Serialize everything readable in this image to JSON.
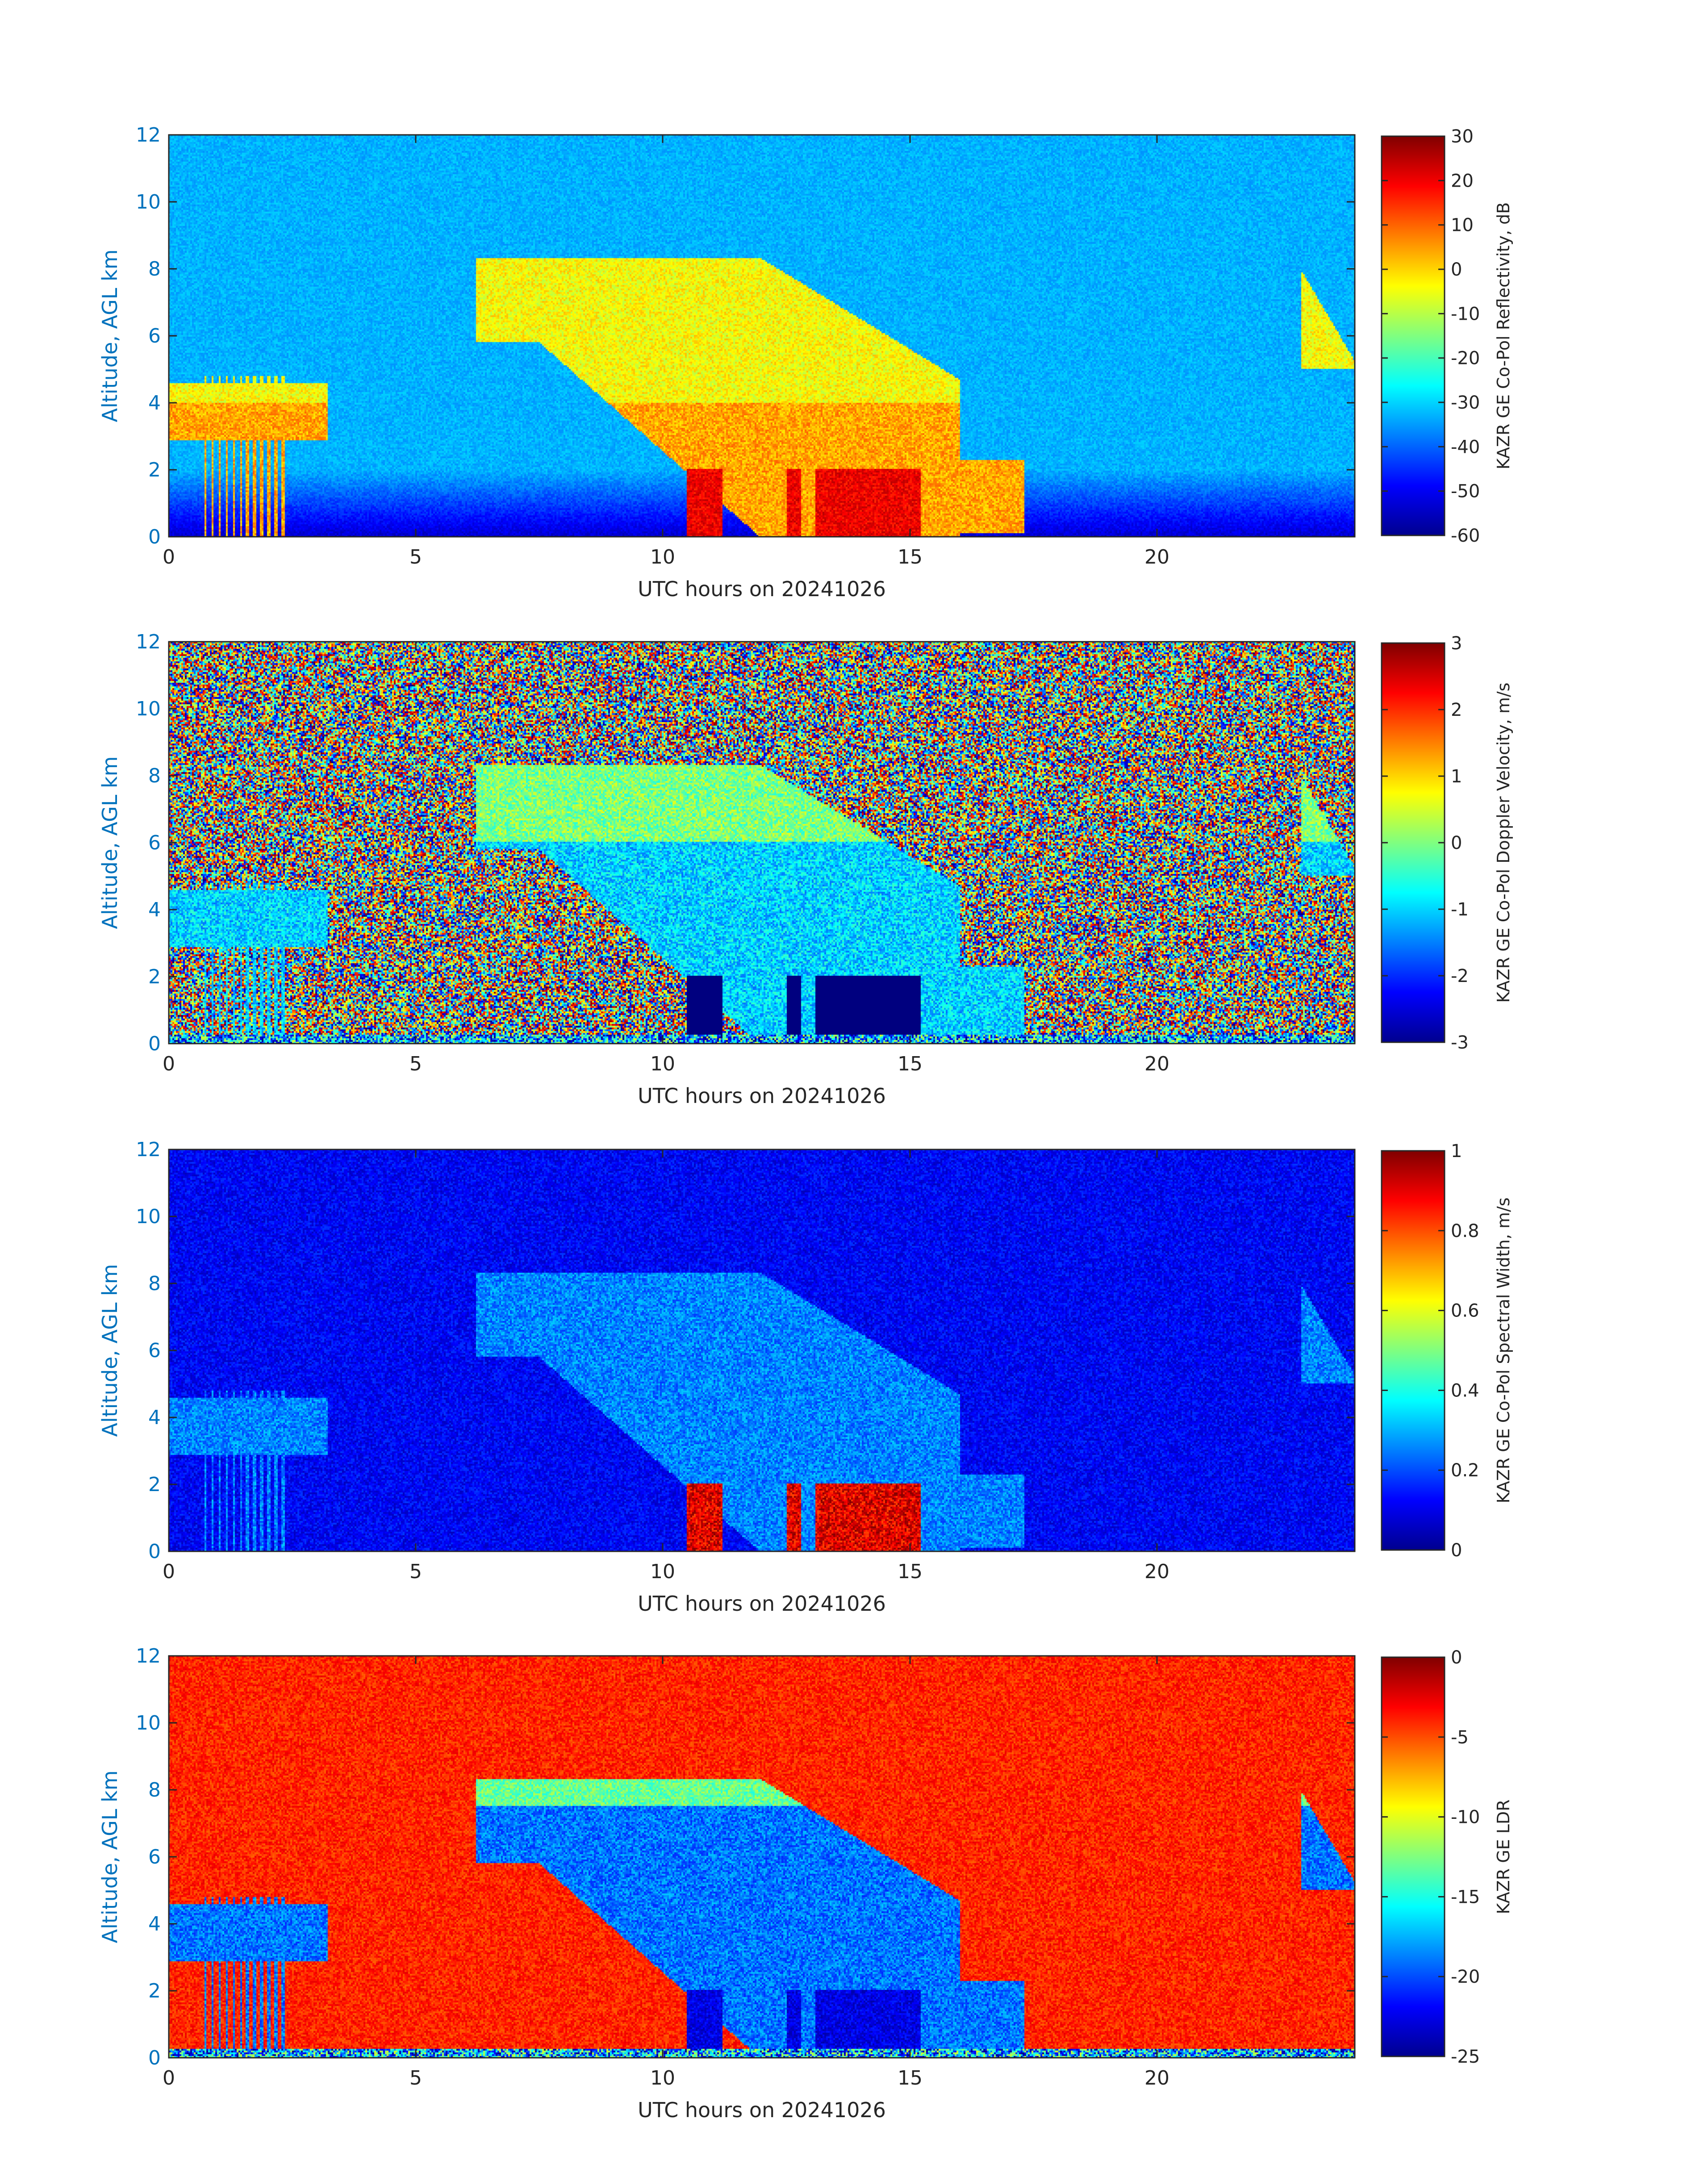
{
  "chart_data": [
    {
      "type": "heatmap",
      "xlabel": "UTC hours on 20241026",
      "ylabel": "Altitude, AGL km",
      "xlim": [
        0,
        24
      ],
      "ylim": [
        0,
        12
      ],
      "xticks": [
        "0",
        "5",
        "10",
        "15",
        "20"
      ],
      "yticks": [
        "0",
        "2",
        "4",
        "6",
        "8",
        "10",
        "12"
      ],
      "colorbar": {
        "label": "KAZR GE Co-Pol Reflectivity, dB",
        "range": [
          -60,
          30
        ],
        "ticks": [
          "-60",
          "-50",
          "-40",
          "-30",
          "-20",
          "-10",
          "0",
          "10",
          "20",
          "30"
        ],
        "colormap": "jet"
      },
      "background_value": -33,
      "noise": 3
    },
    {
      "type": "heatmap",
      "xlabel": "UTC hours on 20241026",
      "ylabel": "Altitude, AGL km",
      "xlim": [
        0,
        24
      ],
      "ylim": [
        0,
        12
      ],
      "xticks": [
        "0",
        "5",
        "10",
        "15",
        "20"
      ],
      "yticks": [
        "0",
        "2",
        "4",
        "6",
        "8",
        "10",
        "12"
      ],
      "colorbar": {
        "label": "KAZR GE Co-Pol Doppler Velocity, m/s",
        "range": [
          -3,
          3
        ],
        "ticks": [
          "-3",
          "-2",
          "-1",
          "0",
          "1",
          "2",
          "3"
        ],
        "colormap": "jet"
      },
      "background_value": "random",
      "noise": 6
    },
    {
      "type": "heatmap",
      "xlabel": "UTC hours on 20241026",
      "ylabel": "Altitude, AGL km",
      "xlim": [
        0,
        24
      ],
      "ylim": [
        0,
        12
      ],
      "xticks": [
        "0",
        "5",
        "10",
        "15",
        "20"
      ],
      "yticks": [
        "0",
        "2",
        "4",
        "6",
        "8",
        "10",
        "12"
      ],
      "colorbar": {
        "label": "KAZR GE Co-Pol Spectral Width, m/s",
        "range": [
          0,
          1
        ],
        "ticks": [
          "0",
          "0.2",
          "0.4",
          "0.6",
          "0.8",
          "1"
        ],
        "colormap": "jet"
      },
      "background_value": 0.12,
      "noise": 0.06
    },
    {
      "type": "heatmap",
      "xlabel": "UTC hours on 20241026",
      "ylabel": "Altitude, AGL km",
      "xlim": [
        0,
        24
      ],
      "ylim": [
        0,
        12
      ],
      "xticks": [
        "0",
        "5",
        "10",
        "15",
        "20"
      ],
      "yticks": [
        "0",
        "2",
        "4",
        "6",
        "8",
        "10",
        "12"
      ],
      "colorbar": {
        "label": "KAZR GE LDR",
        "range": [
          -25,
          0
        ],
        "ticks": [
          "-25",
          "-20",
          "-15",
          "-10",
          "-5",
          "0"
        ],
        "colormap": "jet"
      },
      "background_value": -4,
      "noise": 1.5
    }
  ]
}
